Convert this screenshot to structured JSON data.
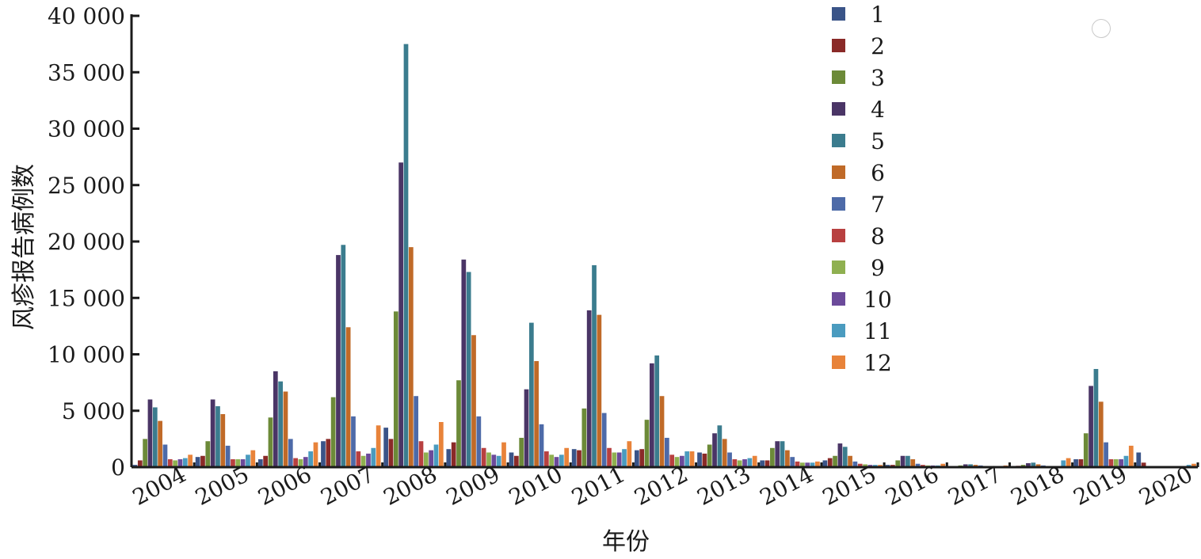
{
  "chart_data": {
    "type": "bar",
    "title": "",
    "xlabel": "年份",
    "ylabel": "风疹报告病例数",
    "ylim": [
      0,
      40000
    ],
    "yticks": [
      0,
      5000,
      10000,
      15000,
      20000,
      25000,
      30000,
      35000,
      40000
    ],
    "ytick_labels": [
      "0",
      "5 000",
      "10 000",
      "15 000",
      "20 000",
      "25 000",
      "30 000",
      "35 000",
      "40 000"
    ],
    "categories": [
      "2004",
      "2005",
      "2006",
      "2007",
      "2008",
      "2009",
      "2010",
      "2011",
      "2012",
      "2013",
      "2014",
      "2015",
      "2016",
      "2017",
      "2018",
      "2019",
      "2020"
    ],
    "grid": false,
    "legend_position": "top-center",
    "series": [
      {
        "name": "1",
        "color": "#3a5488",
        "values": [
          200,
          900,
          700,
          2300,
          3500,
          1600,
          1300,
          1600,
          1500,
          1300,
          600,
          600,
          200,
          80,
          100,
          700,
          1300
        ]
      },
      {
        "name": "2",
        "color": "#8a2a28",
        "values": [
          600,
          1000,
          1000,
          2500,
          2500,
          2200,
          1000,
          1500,
          1600,
          1200,
          600,
          800,
          200,
          80,
          120,
          700,
          400
        ]
      },
      {
        "name": "3",
        "color": "#6c8a38",
        "values": [
          2500,
          2300,
          4400,
          6200,
          13800,
          7700,
          2600,
          5200,
          4200,
          2000,
          1700,
          1000,
          600,
          150,
          200,
          3000,
          100
        ]
      },
      {
        "name": "4",
        "color": "#4a3566",
        "values": [
          6000,
          6000,
          8500,
          18800,
          27000,
          18400,
          6900,
          13900,
          9200,
          3000,
          2300,
          2100,
          1000,
          250,
          350,
          7200,
          80
        ]
      },
      {
        "name": "5",
        "color": "#3b7c8e",
        "values": [
          5300,
          5400,
          7600,
          19700,
          37500,
          17300,
          12800,
          17900,
          9900,
          3700,
          2300,
          1800,
          1000,
          250,
          400,
          8700,
          60
        ]
      },
      {
        "name": "6",
        "color": "#c06a28",
        "values": [
          4100,
          4700,
          6700,
          12400,
          19500,
          11700,
          9400,
          13500,
          6300,
          2500,
          1500,
          1000,
          700,
          200,
          250,
          5800,
          50
        ]
      },
      {
        "name": "7",
        "color": "#4d6aa8",
        "values": [
          2000,
          1900,
          2500,
          4500,
          6300,
          4500,
          3800,
          4800,
          2600,
          1300,
          900,
          500,
          300,
          150,
          150,
          2200,
          40
        ]
      },
      {
        "name": "8",
        "color": "#b84040",
        "values": [
          700,
          700,
          800,
          1400,
          2300,
          1700,
          1400,
          1700,
          1100,
          700,
          500,
          300,
          200,
          100,
          100,
          700,
          40
        ]
      },
      {
        "name": "9",
        "color": "#8fb050",
        "values": [
          600,
          700,
          700,
          1000,
          1300,
          1300,
          1100,
          1300,
          900,
          600,
          400,
          250,
          150,
          80,
          100,
          700,
          40
        ]
      },
      {
        "name": "10",
        "color": "#6b4a9a",
        "values": [
          700,
          700,
          900,
          1200,
          1500,
          1100,
          900,
          1300,
          1000,
          700,
          400,
          200,
          150,
          100,
          100,
          700,
          50
        ]
      },
      {
        "name": "11",
        "color": "#4a9bbf",
        "values": [
          800,
          1100,
          1400,
          1700,
          2000,
          1000,
          1100,
          1600,
          1400,
          800,
          400,
          200,
          150,
          100,
          600,
          1000,
          200
        ]
      },
      {
        "name": "12",
        "color": "#e8833a",
        "values": [
          1100,
          1500,
          2200,
          3700,
          4000,
          2200,
          1700,
          2300,
          1400,
          1000,
          500,
          200,
          300,
          150,
          800,
          1900,
          300
        ]
      }
    ]
  }
}
